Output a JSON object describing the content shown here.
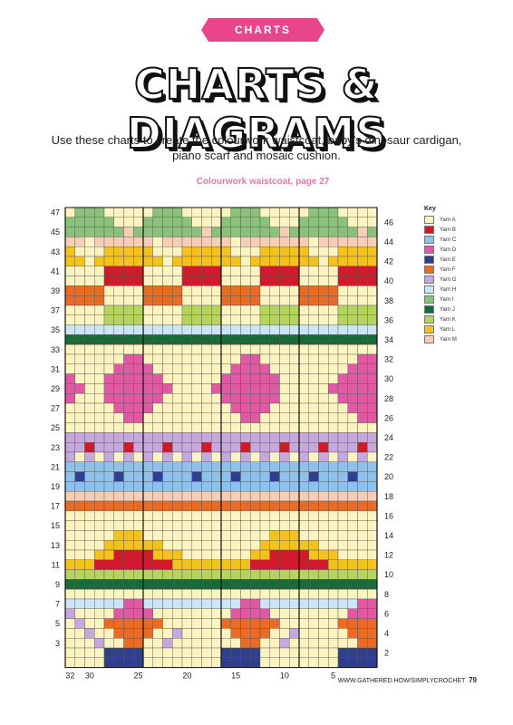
{
  "header": {
    "banner": "CHARTS",
    "title": "CHARTS & DIAGRAMS",
    "intro": "Use these charts to create the colourwork waistcoat, baby’s dinosaur cardigan, piano scarf and mosaic cushion."
  },
  "chart_caption": "Colourwork waistcoat, page 27",
  "chart_data": {
    "type": "colourwork-chart",
    "columns": 32,
    "rows": 47,
    "legend": {
      "title": "Key",
      "items": [
        {
          "code": "A",
          "label": "Yarn A",
          "color": "#fbf4c0"
        },
        {
          "code": "B",
          "label": "Yarn B",
          "color": "#cf1a2a"
        },
        {
          "code": "C",
          "label": "Yarn C",
          "color": "#8fc2ea"
        },
        {
          "code": "D",
          "label": "Yarn D",
          "color": "#e05aa3"
        },
        {
          "code": "E",
          "label": "Yarn E",
          "color": "#2f3f8f"
        },
        {
          "code": "F",
          "label": "Yarn F",
          "color": "#e96b26"
        },
        {
          "code": "G",
          "label": "Yarn G",
          "color": "#c6a7de"
        },
        {
          "code": "H",
          "label": "Yarn H",
          "color": "#cbe5f5"
        },
        {
          "code": "I",
          "label": "Yarn I",
          "color": "#8cc17b"
        },
        {
          "code": "J",
          "label": "Yarn J",
          "color": "#1a6b3a"
        },
        {
          "code": "K",
          "label": "Yarn K",
          "color": "#b5d45d"
        },
        {
          "code": "L",
          "label": "Yarn L",
          "color": "#f4c21c"
        },
        {
          "code": "M",
          "label": "Yarn M",
          "color": "#f6cdb5"
        }
      ]
    },
    "left_row_labels": [
      "47",
      "45",
      "43",
      "41",
      "39",
      "37",
      "35",
      "33",
      "31",
      "29",
      "27",
      "25",
      "23",
      "21",
      "19",
      "17",
      "15",
      "13",
      "11",
      "9",
      "7",
      "5",
      "3"
    ],
    "right_row_labels": [
      "46",
      "44",
      "42",
      "40",
      "38",
      "36",
      "34",
      "32",
      "30",
      "28",
      "26",
      "24",
      "22",
      "20",
      "18",
      "16",
      "14",
      "12",
      "10",
      "8",
      "6",
      "4",
      "2"
    ],
    "column_labels": [
      "32",
      "30",
      "25",
      "20",
      "15",
      "10",
      "5"
    ],
    "grid_rows_top_to_bottom": [
      "AIIIAAAAAIIIAAAAAIIIAAAAAIIIAAAA",
      "IIIIIAAAIIIIIAAAIIIIIAAAIIIIIAAA",
      "IIIIIIMIIIIIIIMIIIIIIIMIIIIIIIMI",
      "MMAMMMMMMAMMMMMMMAMMMMMMMAMMMMMM",
      "LAAALLLLLAAALLLLLAAALLLLLAAALLLL",
      "LLALLLLLLLALLLLLLLALLLLLLLALLLLL",
      "AAAABBBBAAAABBBBAAAABBBBAAAABBBB",
      "AAAABBBBAAAABBBBAAAABBBBAAAABBBB",
      "FFFFAAAAFFFFAAAAFFFFAAAAFFFFAAAA",
      "FFFFAAAAFFFFAAAAFFFFAAAAFFFFAAAA",
      "AAAAKKKKAAAAKKKKAAAAKKKKAAAAKKKK",
      "AAAAKKKKAAAAKKKKAAAAKKKKAAAAKKKK",
      "HHHHHHHHHHHHHHHHHHHHHHHHHHHHHHHH",
      "JJJJJJJJJJJJJJJJJJJJJJJJJJJJJJJJ",
      "AAAAAAAAAAAAAAAAAAAAAAAAAAAAAAAA",
      "AAAAAADDAAAAAAAAAADDAAAAAAAAAADD",
      "AAAAADDDDAAAAAAAADDDDAAAAAAAADDD",
      "DAAADDDDDDAAAAAADDDDDDAAAAAADDDD",
      "DDAADDDDDDDAAAADDDDDDDAAAAADDDDD",
      "DAAADDDDDDAAAAAADDDDDDAAAAAADDDD",
      "AAAAADDDDAAAAAAAADDDDAAAAAAAADDD",
      "AAAAAADDAAAAAAAAAADDAAAAAAAAAADD",
      "AAAAAAAAAAAAAAAAAAAAAAAAAAAAAAAA",
      "GGGGGGGGGGGGGGGGGGGGGGGGGGGGGGGG",
      "GGBGGGBGGGBGGGBGGGBGGGBGGGBGGGBG",
      "GAGAGAGAGAGAGAGAGAGAGAGAGAGAGAGA",
      "CCCCCCCCCCCCCCCCCCCCCCCCCCCCCCCC",
      "CECCCECCCECCCECCCECCCECCCECCCECC",
      "CCCCCCCCCCCCCCCCCCCCCCCCCCCCCCCC",
      "MMMMMMMMMMMMMMMMMMMMMMMMMMMMMMMM",
      "FFFFFFFFFFFFFFFFFFFFFFFFFFFFFFFF",
      "AAAAAAAAAAAAAAAAAAAAAAAAAAAAAAAA",
      "AAAAAAAAAAAAAAAAAAAAAAAAAAAAAAAA",
      "AAAAALLLAAAAAAAAAAAAALLLAAAAAAAA",
      "AAAALLLLLLAAAAAAAAAALLLLLLAAAAAA",
      "AAALLBBBBLLLAAAAAAALLBBBBLLLAAAA",
      "LLLBBBBBBBBLLLLLLLLBBBBBBBBLLLLL",
      "KKKKKKKKKKKKKKKKKKKKKKKKKKKKKKKK",
      "JJJJJJJJJJJJJJJJJJJJJJJJJJJJJJJJ",
      "AAAAAAAAAAAAAAAAAAAAAAAAAAAAAAAA",
      "HHHHHHDDHHHHHHHHHHDDHHHHHHHHHHDD",
      "GAAAADDDDAAAAAAAADDDDAAAAAAAADDD",
      "AGAAFFFFFFAAAAAAFFFFFFAAAAAAFFFF",
      "AAGAAFFFFAAGAAAAAFFFFAAGAAAAAFFF",
      "AAAGAAFFAAGAAAAAAAFFAAGAAAAAAAFF",
      "AAAAEEEEAAAAAAAAEEEEAAAAAAAAEEEE",
      "AAAAEEEEAAAAAAAAEEEEAAAAAAAAEEEE"
    ]
  },
  "footer": {
    "url": "WWW.GATHERED.HOW/SIMPLYCROCHET",
    "page": "79"
  }
}
